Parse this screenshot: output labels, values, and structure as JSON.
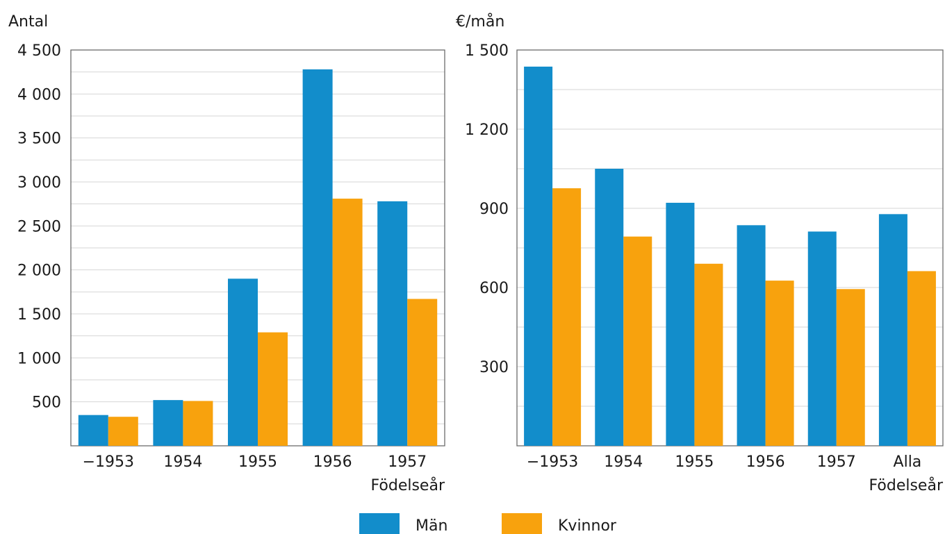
{
  "chart_data": [
    {
      "type": "bar",
      "ylabel": "Antal",
      "xlabel": "Födelseår",
      "categories": [
        "−1953",
        "1954",
        "1955",
        "1956",
        "1957"
      ],
      "ylim": [
        0,
        4500
      ],
      "yticks": [
        500,
        1000,
        1500,
        2000,
        2500,
        3000,
        3500,
        4000,
        4500
      ],
      "ytick_labels": [
        "500",
        "1 000",
        "1 500",
        "2 000",
        "2 500",
        "3 000",
        "3 500",
        "4 000",
        "4 500"
      ],
      "grid": true,
      "series": [
        {
          "name": "Män",
          "values": [
            350,
            520,
            1900,
            4280,
            2780
          ]
        },
        {
          "name": "Kvinnor",
          "values": [
            330,
            510,
            1290,
            2810,
            1670
          ]
        }
      ]
    },
    {
      "type": "bar",
      "ylabel": "€/mån",
      "xlabel": "Födelseår",
      "categories": [
        "−1953",
        "1954",
        "1955",
        "1956",
        "1957",
        "Alla"
      ],
      "ylim": [
        0,
        1500
      ],
      "yticks": [
        300,
        600,
        900,
        1200,
        1500
      ],
      "ytick_labels": [
        "300",
        "600",
        "900",
        "1 200",
        "1 500"
      ],
      "grid": true,
      "series": [
        {
          "name": "Män",
          "values": [
            1437,
            1050,
            921,
            836,
            812,
            878
          ]
        },
        {
          "name": "Kvinnor",
          "values": [
            976,
            793,
            690,
            626,
            594,
            662
          ]
        }
      ]
    }
  ],
  "legend": {
    "position": "bottom",
    "items": [
      {
        "label": "Män",
        "color": "#128dcb"
      },
      {
        "label": "Kvinnor",
        "color": "#f8a20d"
      }
    ]
  },
  "colors": {
    "men": "#128dcb",
    "women": "#f8a20d",
    "grid": "#d6d6d6",
    "axis": "#6b6b6b"
  }
}
